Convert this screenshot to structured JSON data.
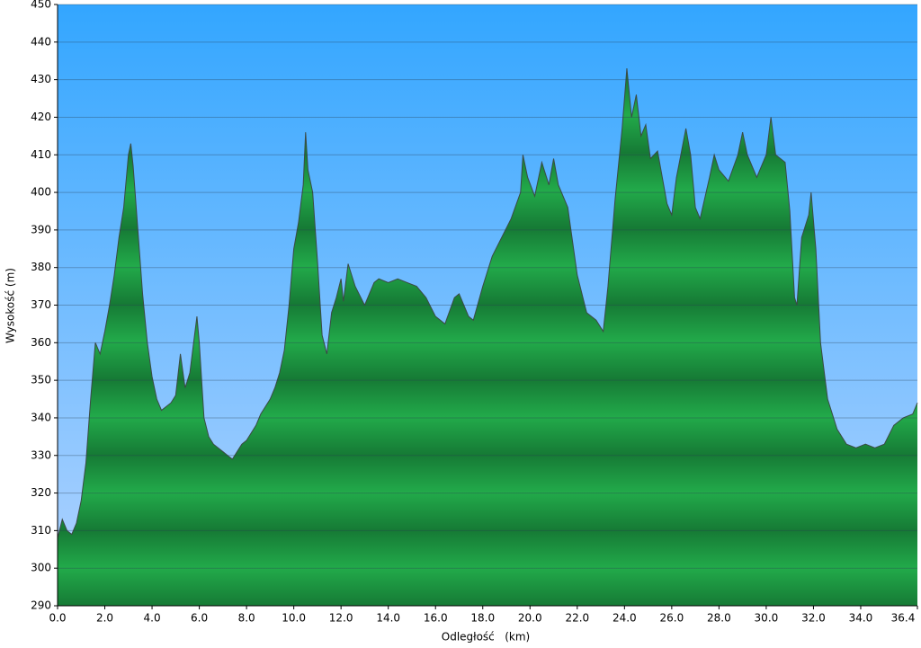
{
  "chart_data": {
    "type": "area",
    "y_label": "Wysokość (m)",
    "x_label": "Odległość   (km)",
    "color": "#1faa48",
    "grid": true,
    "xlim": [
      0,
      36.4
    ],
    "ylim": [
      290,
      450
    ],
    "xticks": [
      {
        "value": 0,
        "label": "0.0"
      },
      {
        "value": 2,
        "label": "2.0"
      },
      {
        "value": 4,
        "label": "4.0"
      },
      {
        "value": 6,
        "label": "6.0"
      },
      {
        "value": 8,
        "label": "8.0"
      },
      {
        "value": 10,
        "label": "10.0"
      },
      {
        "value": 12,
        "label": "12.0"
      },
      {
        "value": 14,
        "label": "14.0"
      },
      {
        "value": 16,
        "label": "16.0"
      },
      {
        "value": 18,
        "label": "18.0"
      },
      {
        "value": 20,
        "label": "20.0"
      },
      {
        "value": 22,
        "label": "22.0"
      },
      {
        "value": 24,
        "label": "24.0"
      },
      {
        "value": 26,
        "label": "26.0"
      },
      {
        "value": 28,
        "label": "28.0"
      },
      {
        "value": 30,
        "label": "30.0"
      },
      {
        "value": 32,
        "label": "32.0"
      },
      {
        "value": 34,
        "label": "34.0"
      },
      36.4
    ],
    "yticks": [
      290,
      300,
      310,
      320,
      330,
      340,
      350,
      360,
      370,
      380,
      390,
      400,
      410,
      420,
      430,
      440,
      450
    ],
    "x": [
      0,
      0.2,
      0.4,
      0.6,
      0.8,
      1.0,
      1.2,
      1.4,
      1.6,
      1.8,
      2.0,
      2.2,
      2.4,
      2.6,
      2.8,
      3.0,
      3.1,
      3.2,
      3.4,
      3.6,
      3.8,
      4.0,
      4.2,
      4.4,
      4.6,
      4.8,
      5.0,
      5.2,
      5.4,
      5.6,
      5.8,
      5.9,
      6.0,
      6.2,
      6.4,
      6.6,
      6.8,
      7.0,
      7.2,
      7.4,
      7.6,
      7.8,
      8.0,
      8.2,
      8.4,
      8.6,
      8.8,
      9.0,
      9.2,
      9.4,
      9.6,
      9.8,
      10.0,
      10.2,
      10.4,
      10.5,
      10.6,
      10.8,
      11.0,
      11.2,
      11.4,
      11.6,
      11.8,
      12.0,
      12.1,
      12.3,
      12.6,
      13.0,
      13.4,
      13.6,
      14.0,
      14.4,
      14.8,
      15.2,
      15.6,
      16.0,
      16.4,
      16.8,
      17.0,
      17.4,
      17.6,
      18.0,
      18.4,
      18.8,
      19.2,
      19.6,
      19.7,
      19.9,
      20.2,
      20.5,
      20.8,
      21.0,
      21.2,
      21.6,
      22.0,
      22.4,
      22.8,
      23.0,
      23.1,
      23.3,
      23.6,
      23.9,
      24.1,
      24.3,
      24.5,
      24.7,
      24.9,
      25.1,
      25.4,
      25.8,
      26.0,
      26.2,
      26.6,
      26.8,
      27.0,
      27.2,
      27.6,
      27.8,
      28.0,
      28.4,
      28.8,
      29.0,
      29.2,
      29.6,
      30.0,
      30.2,
      30.4,
      30.8,
      31.0,
      31.2,
      31.3,
      31.5,
      31.8,
      31.9,
      32.1,
      32.3,
      32.6,
      32.8,
      33.0,
      33.4,
      33.8,
      34.2,
      34.6,
      35.0,
      35.4,
      35.8,
      36.2,
      36.4
    ],
    "y": [
      308,
      313,
      310,
      309,
      312,
      318,
      328,
      345,
      360,
      357,
      363,
      370,
      378,
      388,
      396,
      410,
      413,
      407,
      390,
      373,
      360,
      351,
      345,
      342,
      343,
      344,
      346,
      357,
      348,
      352,
      362,
      367,
      360,
      340,
      335,
      333,
      332,
      331,
      330,
      329,
      331,
      333,
      334,
      336,
      338,
      341,
      343,
      345,
      348,
      352,
      358,
      370,
      385,
      392,
      402,
      416,
      406,
      400,
      382,
      362,
      357,
      368,
      372,
      377,
      371,
      381,
      375,
      370,
      376,
      377,
      376,
      377,
      376,
      375,
      372,
      367,
      365,
      372,
      373,
      367,
      366,
      375,
      383,
      388,
      393,
      400,
      410,
      404,
      399,
      408,
      402,
      409,
      402,
      396,
      378,
      368,
      366,
      364,
      363,
      375,
      398,
      417,
      433,
      420,
      426,
      415,
      418,
      409,
      411,
      397,
      394,
      404,
      417,
      410,
      396,
      393,
      404,
      410,
      406,
      403,
      410,
      416,
      410,
      404,
      410,
      420,
      410,
      408,
      395,
      372,
      370,
      388,
      394,
      400,
      385,
      360,
      345,
      341,
      337,
      333,
      332,
      333,
      332,
      333,
      338,
      340,
      341,
      344
    ]
  }
}
